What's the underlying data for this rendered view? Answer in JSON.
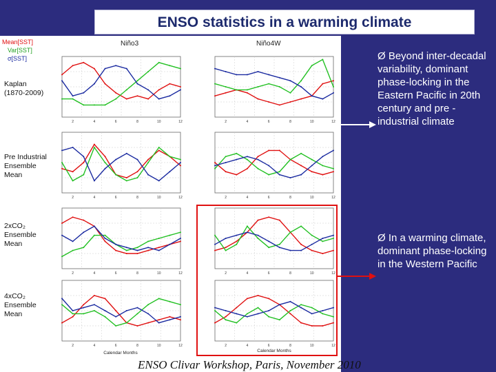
{
  "title": "ENSO statistics in a warming climate",
  "legend": {
    "mean": "Mean[SST]",
    "var": "Var[SST]",
    "std": "σ[SST]"
  },
  "columns": [
    "Niño3",
    "Niño4W"
  ],
  "rows": [
    {
      "label": "Kaplan\n(1870-2009)"
    },
    {
      "label": "Pre Industrial\nEnsemble Mean"
    },
    {
      "label": "2xCO₂\nEnsemble Mean"
    },
    {
      "label": "4xCO₂\nEnsemble Mean"
    }
  ],
  "x_axis_label": "Calendar Months",
  "bullets": [
    "Ø Beyond inter-decadal variability, dominant phase-locking in the Eastern Pacific in 20th century and pre -industrial climate",
    "Ø In a warming climate, dominant phase-locking in the Western Pacific"
  ],
  "footer": "ENSO Clivar Workshop, Paris, November 2010",
  "colors": {
    "background": "#2c2c7e",
    "title_text": "#1d2a6d",
    "red": "#e01010",
    "green": "#22c022",
    "blue": "#1a2aa0",
    "arrow_white": "#ffffff"
  },
  "chart_data": {
    "type": "line",
    "x": [
      1,
      2,
      3,
      4,
      5,
      6,
      7,
      8,
      9,
      10,
      11,
      12
    ],
    "panels": [
      {
        "row": "Kaplan",
        "col": "Niño3",
        "series": [
          {
            "name": "Mean[SST]",
            "values": [
              0.7,
              0.85,
              0.9,
              0.8,
              0.55,
              0.4,
              0.3,
              0.35,
              0.3,
              0.45,
              0.55,
              0.5
            ]
          },
          {
            "name": "Var[SST]",
            "values": [
              0.3,
              0.3,
              0.2,
              0.2,
              0.2,
              0.3,
              0.45,
              0.6,
              0.75,
              0.9,
              0.85,
              0.8
            ]
          },
          {
            "name": "σ[SST]",
            "values": [
              0.6,
              0.35,
              0.4,
              0.55,
              0.8,
              0.85,
              0.8,
              0.55,
              0.45,
              0.3,
              0.35,
              0.45
            ]
          }
        ]
      },
      {
        "row": "Kaplan",
        "col": "Niño4W",
        "series": [
          {
            "name": "Mean[SST]",
            "values": [
              0.35,
              0.4,
              0.45,
              0.4,
              0.3,
              0.25,
              0.2,
              0.25,
              0.3,
              0.35,
              0.55,
              0.6
            ]
          },
          {
            "name": "Var[SST]",
            "values": [
              0.55,
              0.5,
              0.45,
              0.45,
              0.5,
              0.55,
              0.5,
              0.4,
              0.6,
              0.85,
              0.95,
              0.5
            ]
          },
          {
            "name": "σ[SST]",
            "values": [
              0.8,
              0.75,
              0.7,
              0.7,
              0.75,
              0.7,
              0.65,
              0.6,
              0.5,
              0.35,
              0.3,
              0.4
            ]
          }
        ]
      },
      {
        "row": "Pre Industrial",
        "col": "Niño3",
        "series": [
          {
            "name": "Mean[SST]",
            "values": [
              0.4,
              0.35,
              0.5,
              0.8,
              0.6,
              0.3,
              0.25,
              0.35,
              0.55,
              0.7,
              0.6,
              0.45
            ]
          },
          {
            "name": "Var[SST]",
            "values": [
              0.5,
              0.2,
              0.3,
              0.75,
              0.5,
              0.3,
              0.2,
              0.25,
              0.5,
              0.75,
              0.6,
              0.55
            ]
          },
          {
            "name": "σ[SST]",
            "values": [
              0.7,
              0.75,
              0.6,
              0.2,
              0.4,
              0.55,
              0.65,
              0.55,
              0.3,
              0.2,
              0.35,
              0.5
            ]
          }
        ]
      },
      {
        "row": "Pre Industrial",
        "col": "Niño4W",
        "series": [
          {
            "name": "Mean[SST]",
            "values": [
              0.5,
              0.35,
              0.3,
              0.4,
              0.6,
              0.7,
              0.7,
              0.55,
              0.45,
              0.35,
              0.3,
              0.35
            ]
          },
          {
            "name": "Var[SST]",
            "values": [
              0.4,
              0.6,
              0.65,
              0.55,
              0.4,
              0.3,
              0.35,
              0.55,
              0.65,
              0.55,
              0.45,
              0.4
            ]
          },
          {
            "name": "σ[SST]",
            "values": [
              0.45,
              0.5,
              0.55,
              0.6,
              0.55,
              0.45,
              0.3,
              0.25,
              0.3,
              0.45,
              0.6,
              0.7
            ]
          }
        ]
      },
      {
        "row": "2xCO2",
        "col": "Niño3",
        "series": [
          {
            "name": "Mean[SST]",
            "values": [
              0.75,
              0.85,
              0.8,
              0.7,
              0.45,
              0.3,
              0.25,
              0.25,
              0.3,
              0.35,
              0.4,
              0.45
            ]
          },
          {
            "name": "Var[SST]",
            "values": [
              0.2,
              0.3,
              0.35,
              0.55,
              0.55,
              0.4,
              0.3,
              0.35,
              0.45,
              0.5,
              0.55,
              0.6
            ]
          },
          {
            "name": "σ[SST]",
            "values": [
              0.55,
              0.45,
              0.6,
              0.7,
              0.5,
              0.4,
              0.35,
              0.3,
              0.35,
              0.3,
              0.4,
              0.5
            ]
          }
        ]
      },
      {
        "row": "2xCO2",
        "col": "Niño4W",
        "series": [
          {
            "name": "Mean[SST]",
            "values": [
              0.3,
              0.35,
              0.45,
              0.6,
              0.8,
              0.85,
              0.8,
              0.6,
              0.4,
              0.3,
              0.25,
              0.3
            ]
          },
          {
            "name": "Var[SST]",
            "values": [
              0.55,
              0.3,
              0.4,
              0.7,
              0.5,
              0.35,
              0.4,
              0.6,
              0.7,
              0.55,
              0.45,
              0.5
            ]
          },
          {
            "name": "σ[SST]",
            "values": [
              0.4,
              0.5,
              0.55,
              0.6,
              0.55,
              0.45,
              0.35,
              0.3,
              0.3,
              0.4,
              0.5,
              0.55
            ]
          }
        ]
      },
      {
        "row": "4xCO2",
        "col": "Niño3",
        "series": [
          {
            "name": "Mean[SST]",
            "values": [
              0.3,
              0.4,
              0.6,
              0.75,
              0.7,
              0.5,
              0.3,
              0.25,
              0.3,
              0.35,
              0.4,
              0.35
            ]
          },
          {
            "name": "Var[SST]",
            "values": [
              0.6,
              0.45,
              0.45,
              0.5,
              0.4,
              0.25,
              0.3,
              0.45,
              0.6,
              0.7,
              0.65,
              0.6
            ]
          },
          {
            "name": "σ[SST]",
            "values": [
              0.7,
              0.5,
              0.55,
              0.6,
              0.5,
              0.4,
              0.5,
              0.55,
              0.45,
              0.3,
              0.35,
              0.4
            ]
          }
        ]
      },
      {
        "row": "4xCO2",
        "col": "Niño4W",
        "series": [
          {
            "name": "Mean[SST]",
            "values": [
              0.3,
              0.4,
              0.55,
              0.7,
              0.75,
              0.7,
              0.6,
              0.45,
              0.3,
              0.25,
              0.25,
              0.3
            ]
          },
          {
            "name": "Var[SST]",
            "values": [
              0.5,
              0.35,
              0.3,
              0.45,
              0.55,
              0.4,
              0.35,
              0.5,
              0.6,
              0.55,
              0.45,
              0.4
            ]
          },
          {
            "name": "σ[SST]",
            "values": [
              0.55,
              0.5,
              0.45,
              0.4,
              0.45,
              0.5,
              0.6,
              0.65,
              0.55,
              0.45,
              0.5,
              0.55
            ]
          }
        ]
      }
    ]
  }
}
